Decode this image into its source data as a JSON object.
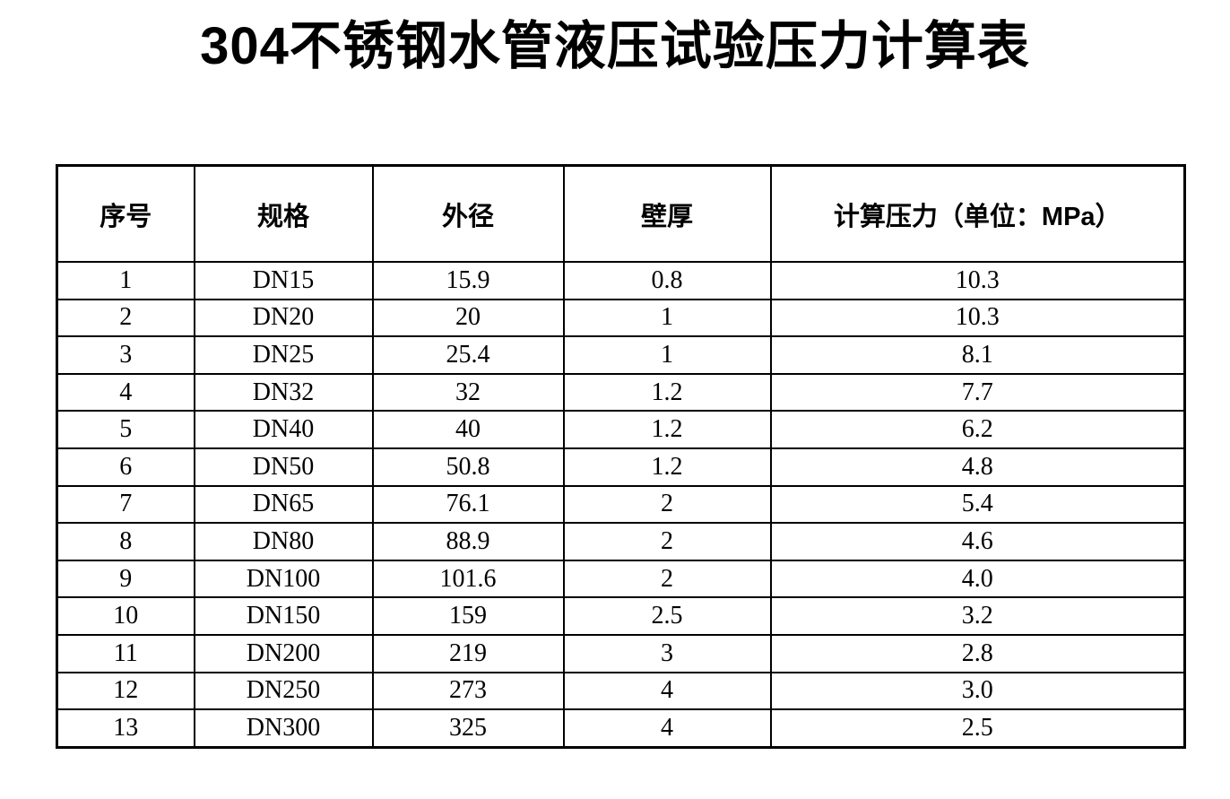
{
  "page": {
    "title": "304不锈钢水管液压试验压力计算表"
  },
  "table": {
    "headers": [
      "序号",
      "规格",
      "外径",
      "壁厚",
      "计算压力（单位：MPa）"
    ],
    "rows": [
      [
        "1",
        "DN15",
        "15.9",
        "0.8",
        "10.3"
      ],
      [
        "2",
        "DN20",
        "20",
        "1",
        "10.3"
      ],
      [
        "3",
        "DN25",
        "25.4",
        "1",
        "8.1"
      ],
      [
        "4",
        "DN32",
        "32",
        "1.2",
        "7.7"
      ],
      [
        "5",
        "DN40",
        "40",
        "1.2",
        "6.2"
      ],
      [
        "6",
        "DN50",
        "50.8",
        "1.2",
        "4.8"
      ],
      [
        "7",
        "DN65",
        "76.1",
        "2",
        "5.4"
      ],
      [
        "8",
        "DN80",
        "88.9",
        "2",
        "4.6"
      ],
      [
        "9",
        "DN100",
        "101.6",
        "2",
        "4.0"
      ],
      [
        "10",
        "DN150",
        "159",
        "2.5",
        "3.2"
      ],
      [
        "11",
        "DN200",
        "219",
        "3",
        "2.8"
      ],
      [
        "12",
        "DN250",
        "273",
        "4",
        "3.0"
      ],
      [
        "13",
        "DN300",
        "325",
        "4",
        "2.5"
      ]
    ]
  }
}
